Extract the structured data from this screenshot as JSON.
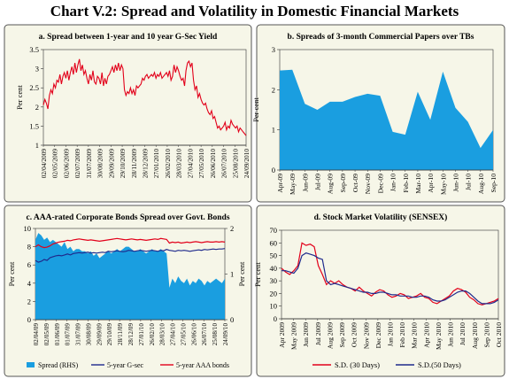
{
  "title": "Chart V.2: Spread and Volatility in Domestic Financial Markets",
  "chart_data": [
    {
      "id": "a",
      "type": "line",
      "title": "a. Spread between 1-year and 10 year G-Sec Yield",
      "ylabel": "Per cent",
      "ylim": [
        1,
        3.5
      ],
      "yticks": [
        "1",
        "1.5",
        "2",
        "2.5",
        "3",
        "3.5"
      ],
      "x_tick_labels": [
        "02/04/2009",
        "02/05/2009",
        "02/06/2009",
        "02/07/2009",
        "31/07/2009",
        "30/08/2009",
        "29/09/2009",
        "29/10/2009",
        "28/11/2009",
        "28/12/2009",
        "27/01/2010",
        "26/02/2010",
        "28/03/2010",
        "27/04/2010",
        "27/05/2010",
        "26/06/2010",
        "26/07/2010",
        "25/08/2010",
        "24/09/2010"
      ],
      "series": [
        {
          "name": "",
          "color": "#e2001a",
          "values": [
            2.05,
            2.2,
            2.1,
            1.95,
            2.3,
            2.45,
            2.35,
            2.6,
            2.5,
            2.7,
            2.65,
            2.85,
            2.6,
            2.8,
            2.9,
            2.75,
            2.95,
            2.7,
            2.9,
            3.05,
            2.85,
            3.15,
            2.9,
            3.1,
            3.25,
            2.95,
            3.1,
            2.85,
            2.95,
            2.75,
            2.6,
            2.85,
            2.7,
            2.95,
            2.65,
            2.6,
            2.8,
            2.75,
            2.6,
            2.9,
            2.55,
            2.75,
            2.6,
            2.8,
            2.85,
            2.95,
            3.05,
            2.9,
            3.1,
            2.95,
            3.15,
            2.95,
            3.1,
            3.0,
            2.45,
            2.3,
            2.4,
            2.35,
            2.5,
            2.35,
            2.45,
            2.3,
            2.55,
            2.5,
            2.55,
            2.6,
            2.75,
            2.7,
            2.8,
            2.85,
            2.75,
            2.8,
            2.85,
            2.8,
            2.9,
            2.75,
            2.85,
            2.8,
            2.9,
            2.75,
            2.8,
            2.85,
            2.9,
            2.8,
            2.95,
            2.7,
            2.8,
            3.1,
            2.9,
            3.05,
            2.95,
            2.8,
            2.7,
            2.75,
            2.55,
            2.95,
            3.15,
            3.2,
            3.05,
            3.15,
            2.7,
            2.45,
            2.55,
            2.25,
            2.35,
            2.2,
            2.1,
            2.05,
            2.1,
            1.95,
            1.85,
            1.8,
            1.9,
            1.7,
            1.75,
            1.6,
            1.45,
            1.5,
            1.4,
            1.45,
            1.5,
            1.6,
            1.4,
            1.5,
            1.45,
            1.65,
            1.55,
            1.5,
            1.45,
            1.5,
            1.35,
            1.45,
            1.4,
            1.35,
            1.3,
            1.25
          ]
        }
      ]
    },
    {
      "id": "b",
      "type": "area",
      "title": "b. Spreads of 3-month Commercial Papers over TBs",
      "ylabel": "Per cent",
      "ylim": [
        0,
        3
      ],
      "yticks": [
        "0",
        "1",
        "2",
        "3"
      ],
      "categories": [
        "Apr-09",
        "May-09",
        "Jun-09",
        "Jul-09",
        "Aug-09",
        "Sep-09",
        "Oct-09",
        "Nov-09",
        "Dec-09",
        "Jan-10",
        "Feb-10",
        "Mar-10",
        "Apr-10",
        "May-10",
        "Jun-10",
        "Jul-10",
        "Aug-10",
        "Sep-10"
      ],
      "series": [
        {
          "name": "",
          "color": "#1a9ee0",
          "values": [
            2.48,
            2.5,
            1.65,
            1.5,
            1.7,
            1.7,
            1.82,
            1.9,
            1.85,
            0.95,
            0.88,
            1.95,
            1.25,
            2.45,
            1.55,
            1.2,
            0.55,
            1.0
          ]
        }
      ]
    },
    {
      "id": "c",
      "type": "line",
      "title": "c. AAA-rated Corporate Bonds Spread over Govt. Bonds",
      "ylabel": "Per cent",
      "ylabel_right": "Per cent",
      "ylim": [
        0,
        10
      ],
      "yticks": [
        "0",
        "2",
        "4",
        "6",
        "8",
        "10"
      ],
      "ylim_right": [
        0,
        2
      ],
      "yticks_right": [
        "0",
        "1",
        "2"
      ],
      "x_tick_labels": [
        "02/04/09",
        "02/05/09",
        "01/06/09",
        "01/07/09",
        "31/07/09",
        "30/08/09",
        "29/09/09",
        "29/10/09",
        "28/11/09",
        "28/12/09",
        "27/01/10",
        "26/02/10",
        "28/03/10",
        "27/04/10",
        "27/05/10",
        "26/06/10",
        "26/07/10",
        "25/08/10",
        "24/09/10"
      ],
      "series": [
        {
          "name": "Spread (RHS)",
          "type": "area",
          "axis": "right",
          "color": "#1a9ee0",
          "values": [
            1.75,
            1.9,
            1.85,
            1.75,
            1.8,
            1.7,
            1.75,
            1.7,
            1.65,
            1.6,
            1.7,
            1.55,
            1.6,
            1.5,
            1.55,
            1.55,
            1.5,
            1.5,
            1.45,
            1.5,
            1.4,
            1.45,
            1.35,
            1.4,
            1.45,
            1.5,
            1.45,
            1.5,
            1.55,
            1.5,
            1.55,
            1.6,
            1.6,
            1.55,
            1.5,
            1.5,
            1.55,
            1.5,
            1.45,
            1.5,
            1.55,
            1.5,
            1.5,
            1.55,
            1.5,
            1.45,
            0.7,
            0.9,
            0.8,
            0.95,
            0.85,
            0.8,
            0.9,
            0.75,
            0.85,
            0.8,
            0.9,
            0.85,
            0.75,
            0.85,
            0.8,
            0.85,
            0.9,
            0.85,
            0.8,
            0.9
          ]
        },
        {
          "name": "5-year G-sec",
          "axis": "left",
          "color": "#1f2a8c",
          "values": [
            6.5,
            6.3,
            6.4,
            6.6,
            6.5,
            6.8,
            6.9,
            7.0,
            7.05,
            7.0,
            7.1,
            7.2,
            7.1,
            7.25,
            7.3,
            7.35,
            7.3,
            7.35,
            7.4,
            7.3,
            7.35,
            7.3,
            7.35,
            7.4,
            7.35,
            7.5,
            7.45,
            7.5,
            7.55,
            7.5,
            7.45,
            7.5,
            7.6,
            7.55,
            7.5,
            7.55,
            7.6,
            7.55,
            7.5,
            7.55,
            7.6,
            7.55,
            7.5,
            7.6,
            7.55,
            7.7,
            7.6,
            7.55,
            7.5,
            7.6,
            7.55,
            7.6,
            7.55,
            7.5,
            7.55,
            7.6,
            7.65,
            7.6,
            7.7,
            7.65,
            7.7,
            7.75,
            7.7,
            7.75,
            7.75,
            7.8
          ]
        },
        {
          "name": "5-year AAA bonds",
          "axis": "left",
          "color": "#e2001a",
          "values": [
            8.0,
            8.2,
            8.0,
            7.9,
            7.95,
            8.1,
            8.3,
            8.4,
            8.5,
            8.55,
            8.6,
            8.7,
            8.65,
            8.75,
            8.8,
            8.85,
            8.8,
            8.75,
            8.7,
            8.75,
            8.7,
            8.65,
            8.6,
            8.65,
            8.7,
            8.75,
            8.8,
            8.85,
            8.9,
            8.85,
            8.8,
            8.75,
            8.8,
            8.85,
            8.8,
            8.75,
            8.8,
            8.75,
            8.7,
            8.75,
            8.8,
            8.85,
            8.8,
            8.9,
            8.85,
            8.8,
            8.4,
            8.5,
            8.45,
            8.5,
            8.4,
            8.45,
            8.5,
            8.45,
            8.5,
            8.55,
            8.5,
            8.45,
            8.5,
            8.55,
            8.5,
            8.5,
            8.55,
            8.5,
            8.55,
            8.5
          ]
        }
      ]
    },
    {
      "id": "d",
      "type": "line",
      "title": "d. Stock Market Volatility (SENSEX)",
      "ylabel": "Per cent",
      "ylim": [
        0,
        70
      ],
      "yticks": [
        "0",
        "10",
        "20",
        "30",
        "40",
        "50",
        "60",
        "70"
      ],
      "x_tick_labels": [
        "Apr 2009",
        "May 2009",
        "Jun 2009",
        "Jul 2009",
        "Aug 2009",
        "Sep 2009",
        "Oct 2009",
        "Nov 2009",
        "Dec 2009",
        "Jan 2010",
        "Feb 2010",
        "Mar 2010",
        "Apr 2010",
        "May 2010",
        "Jun 2010",
        "Jul 2010",
        "Aug 2010",
        "Sep 2010",
        "Oct 2010"
      ],
      "series": [
        {
          "name": "S.D. (30 Days)",
          "color": "#e2001a",
          "values": [
            40,
            37,
            35,
            38,
            42,
            60,
            58,
            59,
            57,
            42,
            35,
            27,
            30,
            28,
            30,
            27,
            25,
            24,
            22,
            25,
            22,
            20,
            18,
            21,
            23,
            22,
            19,
            17,
            18,
            20,
            19,
            16,
            17,
            18,
            20,
            17,
            16,
            13,
            12,
            14,
            16,
            18,
            22,
            24,
            23,
            21,
            17,
            15,
            12,
            11,
            12,
            13,
            14,
            16
          ]
        },
        {
          "name": "S.D.(50 Days)",
          "color": "#1f2a8c",
          "values": [
            38,
            38,
            37,
            36,
            40,
            50,
            52,
            51,
            50,
            48,
            47,
            30,
            27,
            28,
            27,
            26,
            25,
            24,
            23,
            22,
            21,
            21,
            20,
            20,
            21,
            21,
            20,
            19,
            19,
            18,
            18,
            18,
            17,
            17,
            18,
            18,
            17,
            15,
            14,
            14,
            15,
            17,
            19,
            21,
            22,
            22,
            20,
            17,
            14,
            12,
            12,
            12,
            13,
            15
          ]
        }
      ]
    }
  ]
}
